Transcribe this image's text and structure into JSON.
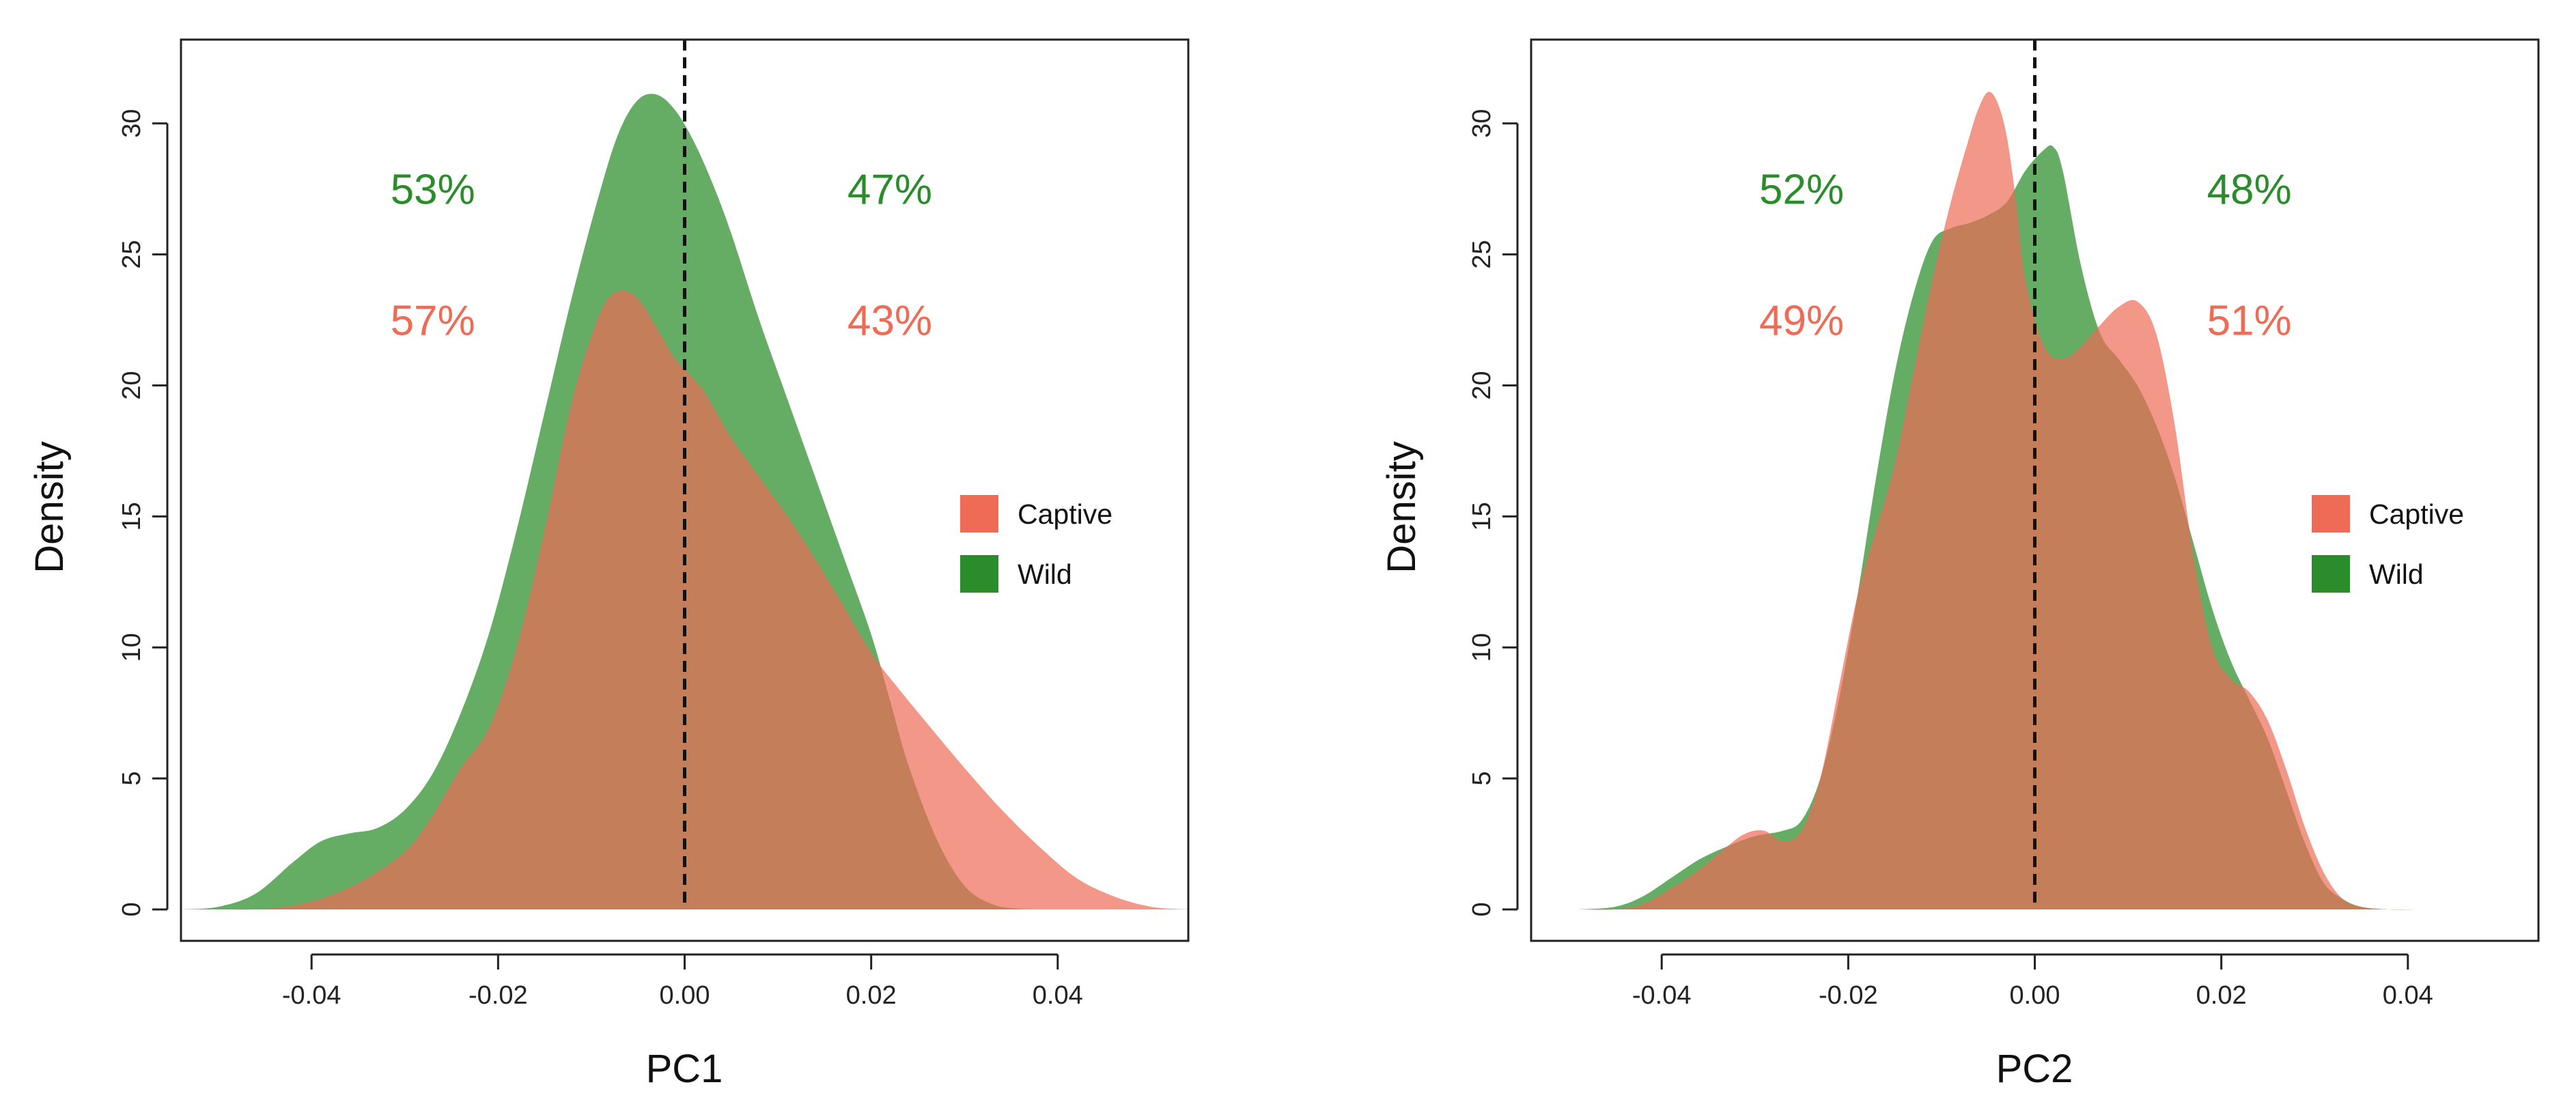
{
  "chart_data": [
    {
      "id": "pc1",
      "type": "area",
      "title": "",
      "xlabel": "PC1",
      "ylabel": "Density",
      "xlim": [
        -0.054,
        0.054
      ],
      "ylim": [
        -1.2,
        33.2
      ],
      "xticks": [
        -0.04,
        -0.02,
        0.0,
        0.02,
        0.04
      ],
      "xtick_labels": [
        "-0.04",
        "-0.02",
        "0.00",
        "0.02",
        "0.04"
      ],
      "yticks": [
        0,
        5,
        10,
        15,
        20,
        25,
        30
      ],
      "ytick_labels": [
        "0",
        "5",
        "10",
        "15",
        "20",
        "25",
        "30"
      ],
      "reference_line_x": 0.0,
      "legend": {
        "position": "right",
        "entries": [
          {
            "label": "Captive",
            "color": "#ee6b55"
          },
          {
            "label": "Wild",
            "color": "#2a8c2a"
          }
        ]
      },
      "annotations": [
        {
          "text": "53%",
          "series": "Wild",
          "side": "left",
          "x": -0.027,
          "y": 27.5
        },
        {
          "text": "47%",
          "series": "Wild",
          "side": "right",
          "x": 0.022,
          "y": 27.5
        },
        {
          "text": "57%",
          "series": "Captive",
          "side": "left",
          "x": -0.027,
          "y": 22.5
        },
        {
          "text": "43%",
          "series": "Captive",
          "side": "right",
          "x": 0.022,
          "y": 22.5
        }
      ],
      "series": [
        {
          "name": "Wild",
          "color": "#2a8c2a",
          "x": [
            -0.054,
            -0.05,
            -0.046,
            -0.042,
            -0.039,
            -0.036,
            -0.033,
            -0.03,
            -0.027,
            -0.024,
            -0.021,
            -0.018,
            -0.015,
            -0.012,
            -0.009,
            -0.007,
            -0.005,
            -0.003,
            -0.001,
            0.001,
            0.003,
            0.005,
            0.008,
            0.011,
            0.014,
            0.017,
            0.02,
            0.022,
            0.024,
            0.027,
            0.03,
            0.033,
            0.036,
            0.04,
            0.045,
            0.05,
            0.054
          ],
          "y": [
            0,
            0.1,
            0.6,
            1.8,
            2.6,
            2.9,
            3.1,
            3.8,
            5.2,
            7.5,
            10.5,
            14.5,
            19.0,
            23.5,
            27.5,
            29.7,
            30.9,
            31.1,
            30.5,
            29.3,
            27.7,
            25.8,
            22.5,
            19.5,
            16.5,
            13.5,
            10.5,
            8.0,
            5.5,
            2.7,
            0.9,
            0.2,
            0.02,
            0,
            0,
            0,
            0
          ]
        },
        {
          "name": "Captive",
          "color": "#ee6b55",
          "x": [
            -0.054,
            -0.05,
            -0.045,
            -0.04,
            -0.035,
            -0.03,
            -0.027,
            -0.024,
            -0.021,
            -0.018,
            -0.015,
            -0.012,
            -0.009,
            -0.007,
            -0.005,
            -0.003,
            -0.001,
            0.002,
            0.005,
            0.008,
            0.012,
            0.016,
            0.02,
            0.023,
            0.026,
            0.03,
            0.034,
            0.038,
            0.042,
            0.046,
            0.05,
            0.054
          ],
          "y": [
            0,
            0,
            0.02,
            0.3,
            1.0,
            2.2,
            3.6,
            5.4,
            6.9,
            10.0,
            14.5,
            19.5,
            22.8,
            23.6,
            23.3,
            22.2,
            21.0,
            19.8,
            18.0,
            16.5,
            14.5,
            12.2,
            9.8,
            8.4,
            7.1,
            5.4,
            3.8,
            2.4,
            1.2,
            0.5,
            0.1,
            0
          ]
        }
      ]
    },
    {
      "id": "pc2",
      "type": "area",
      "title": "",
      "xlabel": "PC2",
      "ylabel": "Density",
      "xlim": [
        -0.054,
        0.054
      ],
      "ylim": [
        -1.2,
        33.2
      ],
      "xticks": [
        -0.04,
        -0.02,
        0.0,
        0.02,
        0.04
      ],
      "xtick_labels": [
        "-0.04",
        "-0.02",
        "0.00",
        "0.02",
        "0.04"
      ],
      "yticks": [
        0,
        5,
        10,
        15,
        20,
        25,
        30
      ],
      "ytick_labels": [
        "0",
        "5",
        "10",
        "15",
        "20",
        "25",
        "30"
      ],
      "reference_line_x": 0.0,
      "legend": {
        "position": "right",
        "entries": [
          {
            "label": "Captive",
            "color": "#ee6b55"
          },
          {
            "label": "Wild",
            "color": "#2a8c2a"
          }
        ]
      },
      "annotations": [
        {
          "text": "52%",
          "series": "Wild",
          "side": "left",
          "x": -0.025,
          "y": 27.5
        },
        {
          "text": "48%",
          "series": "Wild",
          "side": "right",
          "x": 0.023,
          "y": 27.5
        },
        {
          "text": "49%",
          "series": "Captive",
          "side": "left",
          "x": -0.025,
          "y": 22.5
        },
        {
          "text": "51%",
          "series": "Captive",
          "side": "right",
          "x": 0.023,
          "y": 22.5
        }
      ],
      "series": [
        {
          "name": "Wild",
          "color": "#2a8c2a",
          "x": [
            -0.049,
            -0.045,
            -0.042,
            -0.039,
            -0.036,
            -0.033,
            -0.03,
            -0.027,
            -0.025,
            -0.023,
            -0.021,
            -0.019,
            -0.017,
            -0.015,
            -0.013,
            -0.011,
            -0.009,
            -0.007,
            -0.005,
            -0.003,
            -0.001,
            0.001,
            0.002,
            0.003,
            0.005,
            0.007,
            0.009,
            0.011,
            0.013,
            0.015,
            0.017,
            0.019,
            0.021,
            0.023,
            0.025,
            0.027,
            0.029,
            0.031,
            0.033,
            0.035,
            0.038,
            0.041,
            0.043
          ],
          "y": [
            0,
            0.1,
            0.5,
            1.2,
            1.9,
            2.4,
            2.8,
            3.0,
            3.4,
            5.0,
            8.0,
            12.0,
            16.5,
            20.5,
            23.5,
            25.5,
            26.0,
            26.2,
            26.5,
            27.0,
            28.2,
            29.0,
            29.1,
            28.2,
            24.5,
            22.0,
            21.0,
            20.0,
            18.5,
            16.5,
            14.0,
            11.5,
            9.5,
            8.0,
            6.5,
            4.5,
            2.5,
            1.0,
            0.4,
            0.1,
            0,
            0,
            0
          ]
        },
        {
          "name": "Captive",
          "color": "#ee6b55",
          "x": [
            -0.049,
            -0.045,
            -0.042,
            -0.039,
            -0.036,
            -0.033,
            -0.031,
            -0.029,
            -0.027,
            -0.025,
            -0.023,
            -0.021,
            -0.019,
            -0.017,
            -0.015,
            -0.013,
            -0.011,
            -0.009,
            -0.007,
            -0.006,
            -0.005,
            -0.004,
            -0.003,
            -0.002,
            -0.001,
            0.001,
            0.003,
            0.005,
            0.007,
            0.009,
            0.011,
            0.013,
            0.015,
            0.017,
            0.019,
            0.021,
            0.023,
            0.025,
            0.027,
            0.029,
            0.031,
            0.033,
            0.035,
            0.038,
            0.041,
            0.043
          ],
          "y": [
            0,
            0,
            0.2,
            0.8,
            1.5,
            2.4,
            2.9,
            3.0,
            2.6,
            3.0,
            5.0,
            8.5,
            12.0,
            14.5,
            17.0,
            20.5,
            24.0,
            27.0,
            29.5,
            30.6,
            31.2,
            30.8,
            29.5,
            27.0,
            24.0,
            21.5,
            21.0,
            21.5,
            22.3,
            23.0,
            23.2,
            22.0,
            18.5,
            13.5,
            10.0,
            8.8,
            8.3,
            7.2,
            5.3,
            3.1,
            1.4,
            0.4,
            0.1,
            0,
            0,
            0
          ]
        }
      ]
    }
  ]
}
